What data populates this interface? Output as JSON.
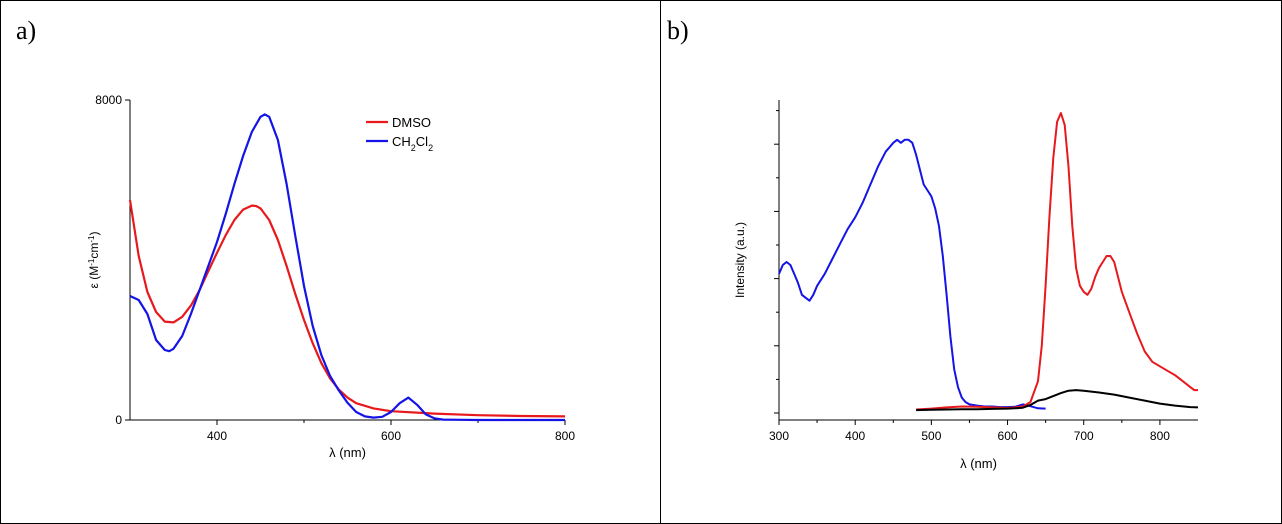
{
  "panels": {
    "a": {
      "label": "a)"
    },
    "b": {
      "label": "b)"
    }
  },
  "chart_data": [
    {
      "type": "line",
      "panel": "a)",
      "title": "",
      "xlabel": "λ (nm)",
      "ylabel_parts": [
        "ε (M",
        "-1",
        "cm",
        "-1",
        ")"
      ],
      "xlim": [
        300,
        800
      ],
      "ylim": [
        0,
        8000
      ],
      "x_ticks": [
        400,
        600,
        800
      ],
      "y_ticks": [
        0,
        8000
      ],
      "grid": false,
      "legend_position": "top-right",
      "legend": [
        {
          "name": "DMSO",
          "color": "#e8191c",
          "parts": [
            [
              "DMSO",
              "n"
            ]
          ]
        },
        {
          "name": "CH2Cl2",
          "color": "#1414e6",
          "parts": [
            [
              "CH",
              "n"
            ],
            [
              "2",
              "sub"
            ],
            [
              "Cl",
              "n"
            ],
            [
              "2",
              "sub"
            ]
          ]
        }
      ],
      "series": [
        {
          "name": "DMSO",
          "color": "#e8191c",
          "x": [
            300,
            310,
            320,
            330,
            340,
            350,
            360,
            370,
            380,
            390,
            400,
            410,
            420,
            430,
            440,
            445,
            450,
            460,
            470,
            480,
            490,
            500,
            510,
            520,
            530,
            540,
            550,
            560,
            580,
            600,
            650,
            700,
            750,
            800
          ],
          "y": [
            5500,
            4100,
            3200,
            2700,
            2460,
            2440,
            2580,
            2860,
            3250,
            3720,
            4180,
            4620,
            5000,
            5260,
            5360,
            5350,
            5290,
            5000,
            4500,
            3850,
            3150,
            2500,
            1920,
            1420,
            1040,
            760,
            560,
            420,
            290,
            220,
            160,
            120,
            100,
            90
          ]
        },
        {
          "name": "CH2Cl2",
          "color": "#1414e6",
          "x": [
            300,
            310,
            320,
            330,
            340,
            345,
            350,
            360,
            370,
            380,
            390,
            400,
            410,
            420,
            430,
            440,
            450,
            455,
            460,
            470,
            480,
            490,
            500,
            510,
            520,
            530,
            540,
            550,
            560,
            570,
            580,
            590,
            600,
            610,
            620,
            630,
            640,
            650,
            660,
            680,
            700,
            750,
            800
          ],
          "y": [
            3100,
            3000,
            2650,
            2000,
            1750,
            1720,
            1780,
            2100,
            2650,
            3250,
            3850,
            4450,
            5150,
            5900,
            6600,
            7200,
            7580,
            7640,
            7580,
            7000,
            5900,
            4600,
            3350,
            2350,
            1620,
            1100,
            740,
            430,
            200,
            90,
            60,
            80,
            200,
            420,
            560,
            380,
            140,
            40,
            10,
            5,
            0,
            0,
            0
          ]
        }
      ]
    },
    {
      "type": "line",
      "panel": "b)",
      "title": "",
      "xlabel": "λ (nm)",
      "ylabel": "Intensity (a.u.)",
      "xlim": [
        300,
        850
      ],
      "x_ticks": [
        300,
        400,
        500,
        600,
        700,
        800
      ],
      "y_tick_labels": "none",
      "ylim": [
        0,
        1
      ],
      "grid": false,
      "series": [
        {
          "color": "#1414e6",
          "x": [
            300,
            305,
            310,
            315,
            320,
            325,
            330,
            335,
            340,
            345,
            350,
            360,
            370,
            380,
            390,
            400,
            410,
            420,
            430,
            440,
            450,
            455,
            460,
            465,
            470,
            475,
            480,
            485,
            490,
            495,
            500,
            505,
            510,
            515,
            520,
            525,
            530,
            535,
            540,
            545,
            550,
            560,
            570,
            580,
            590,
            600,
            610,
            620,
            630,
            640,
            650
          ],
          "y": [
            0.46,
            0.49,
            0.5,
            0.49,
            0.46,
            0.43,
            0.39,
            0.38,
            0.37,
            0.39,
            0.42,
            0.46,
            0.51,
            0.56,
            0.61,
            0.65,
            0.7,
            0.76,
            0.82,
            0.87,
            0.9,
            0.91,
            0.9,
            0.91,
            0.91,
            0.9,
            0.86,
            0.81,
            0.76,
            0.74,
            0.72,
            0.68,
            0.62,
            0.52,
            0.39,
            0.25,
            0.14,
            0.08,
            0.045,
            0.03,
            0.022,
            0.018,
            0.015,
            0.015,
            0.013,
            0.013,
            0.014,
            0.022,
            0.016,
            0.009,
            0.008
          ]
        },
        {
          "color": "#e8191c",
          "x": [
            480,
            500,
            520,
            540,
            560,
            580,
            600,
            610,
            620,
            630,
            640,
            645,
            650,
            655,
            660,
            665,
            670,
            675,
            680,
            685,
            690,
            695,
            700,
            705,
            710,
            715,
            720,
            725,
            730,
            735,
            740,
            745,
            750,
            760,
            770,
            780,
            790,
            800,
            810,
            820,
            830,
            840,
            845,
            850
          ],
          "y": [
            0.005,
            0.008,
            0.012,
            0.015,
            0.014,
            0.012,
            0.01,
            0.012,
            0.015,
            0.03,
            0.1,
            0.22,
            0.42,
            0.65,
            0.85,
            0.97,
            1.0,
            0.96,
            0.82,
            0.62,
            0.48,
            0.42,
            0.4,
            0.39,
            0.41,
            0.45,
            0.48,
            0.5,
            0.52,
            0.52,
            0.5,
            0.45,
            0.4,
            0.33,
            0.26,
            0.2,
            0.165,
            0.15,
            0.135,
            0.12,
            0.1,
            0.08,
            0.07,
            0.07
          ]
        },
        {
          "color": "#000000",
          "x": [
            480,
            500,
            520,
            540,
            560,
            580,
            600,
            610,
            620,
            630,
            640,
            650,
            660,
            670,
            680,
            690,
            700,
            720,
            740,
            760,
            780,
            800,
            820,
            840,
            850
          ],
          "y": [
            0.003,
            0.004,
            0.005,
            0.006,
            0.006,
            0.007,
            0.008,
            0.009,
            0.011,
            0.02,
            0.035,
            0.04,
            0.05,
            0.06,
            0.068,
            0.07,
            0.068,
            0.062,
            0.055,
            0.045,
            0.035,
            0.025,
            0.018,
            0.013,
            0.012
          ]
        }
      ]
    }
  ]
}
